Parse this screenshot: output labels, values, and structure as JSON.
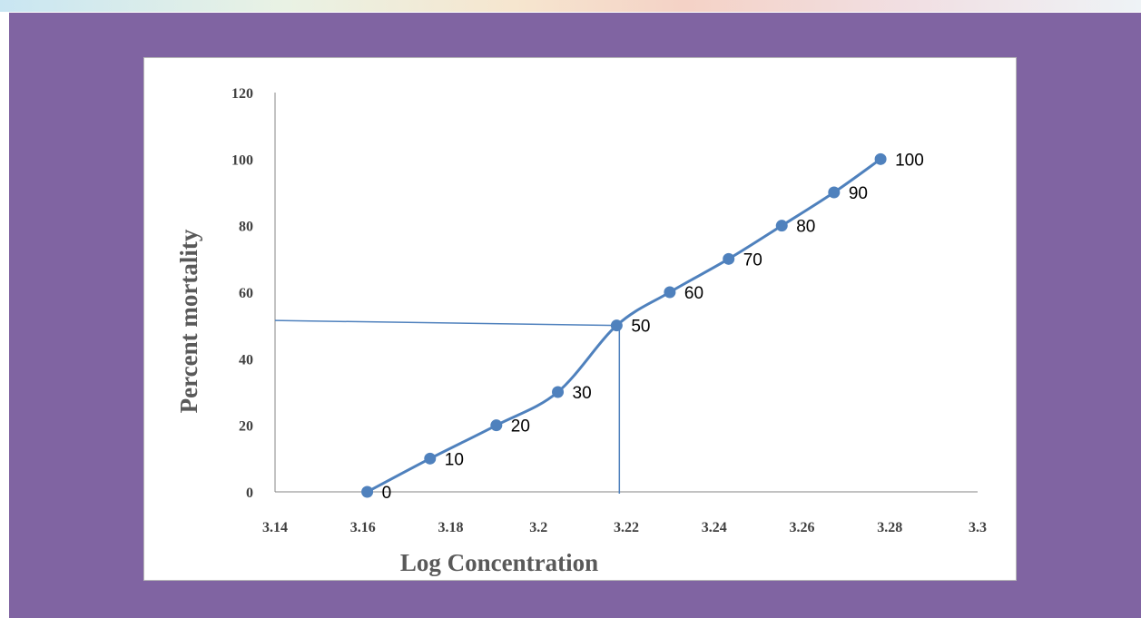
{
  "chart_data": {
    "type": "line",
    "xlabel": "Log Concentration",
    "ylabel": "Percent mortality",
    "xlim": [
      3.14,
      3.3
    ],
    "ylim": [
      0,
      120
    ],
    "x_ticks": [
      "3.14",
      "3.16",
      "3.18",
      "3.2",
      "3.22",
      "3.24",
      "3.26",
      "3.28",
      "3.3"
    ],
    "y_ticks": [
      "0",
      "20",
      "40",
      "60",
      "80",
      "100",
      "120"
    ],
    "grid": false,
    "legend": "none",
    "series": [
      {
        "color": "#4f81bd",
        "x": [
          3.161,
          3.1753,
          3.1904,
          3.2044,
          3.2178,
          3.2299,
          3.2433,
          3.2554,
          3.2673,
          3.2779
        ],
        "y": [
          0,
          10,
          20,
          30,
          50,
          60,
          70,
          80,
          90,
          100
        ],
        "labels": [
          "0",
          "10",
          "20",
          "30",
          "50",
          "60",
          "70",
          "80",
          "90",
          "100"
        ]
      }
    ],
    "annotations": [
      {
        "type": "horizontal-line",
        "y": 51.5,
        "x_from": 3.14,
        "x_to": 3.2178,
        "color": "#4f81bd"
      },
      {
        "type": "vertical-line",
        "x": 3.218,
        "y_from": 0,
        "y_to": 50,
        "color": "#4f81bd"
      }
    ]
  }
}
